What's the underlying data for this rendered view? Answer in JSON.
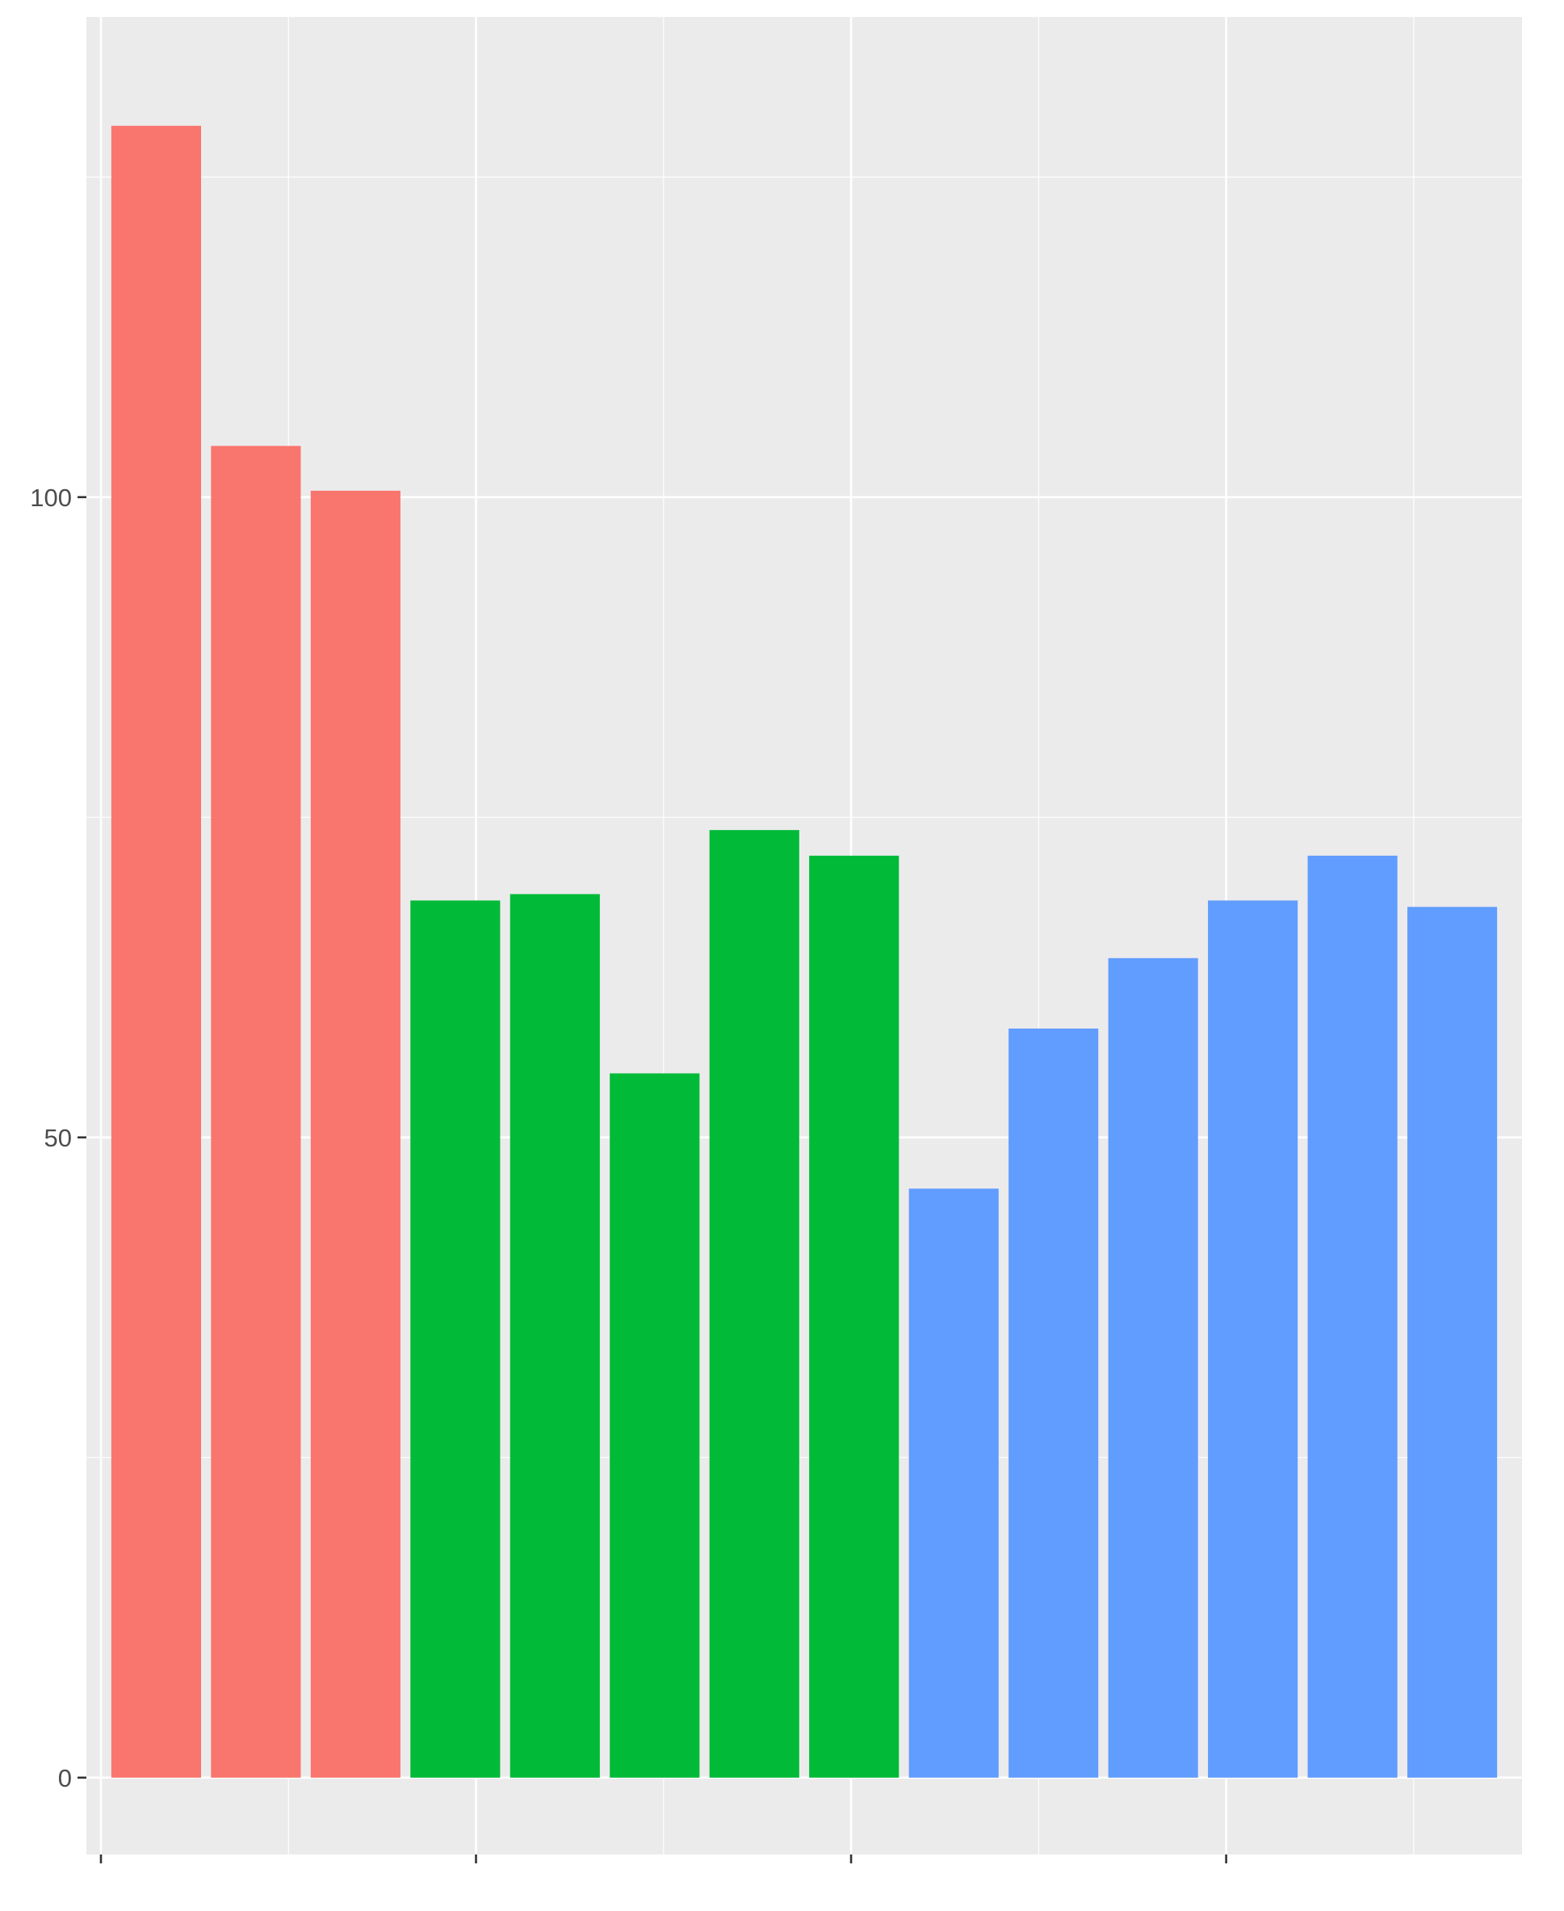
{
  "chart_data": {
    "type": "bar",
    "title": "",
    "xlabel": "",
    "ylabel": "",
    "values": [
      129,
      104,
      100.5,
      68.5,
      69.0,
      55.0,
      74.0,
      72.0,
      46.0,
      58.5,
      64.0,
      68.5,
      72.0,
      68.0
    ],
    "groups": [
      0,
      0,
      0,
      1,
      1,
      1,
      1,
      1,
      2,
      2,
      2,
      2,
      2,
      2
    ],
    "group_colors": [
      "#F8766D",
      "#00BA38",
      "#619CFF"
    ],
    "ylim": [
      -6,
      137.5
    ],
    "y_ticks": [
      0,
      50,
      100
    ],
    "y_tick_labels": [
      "0",
      "50",
      "100"
    ],
    "x_tick_count": 4,
    "panel_background": "#EBEBEB",
    "grid": true,
    "grid_color": "#FFFFFF",
    "legend": "none"
  }
}
